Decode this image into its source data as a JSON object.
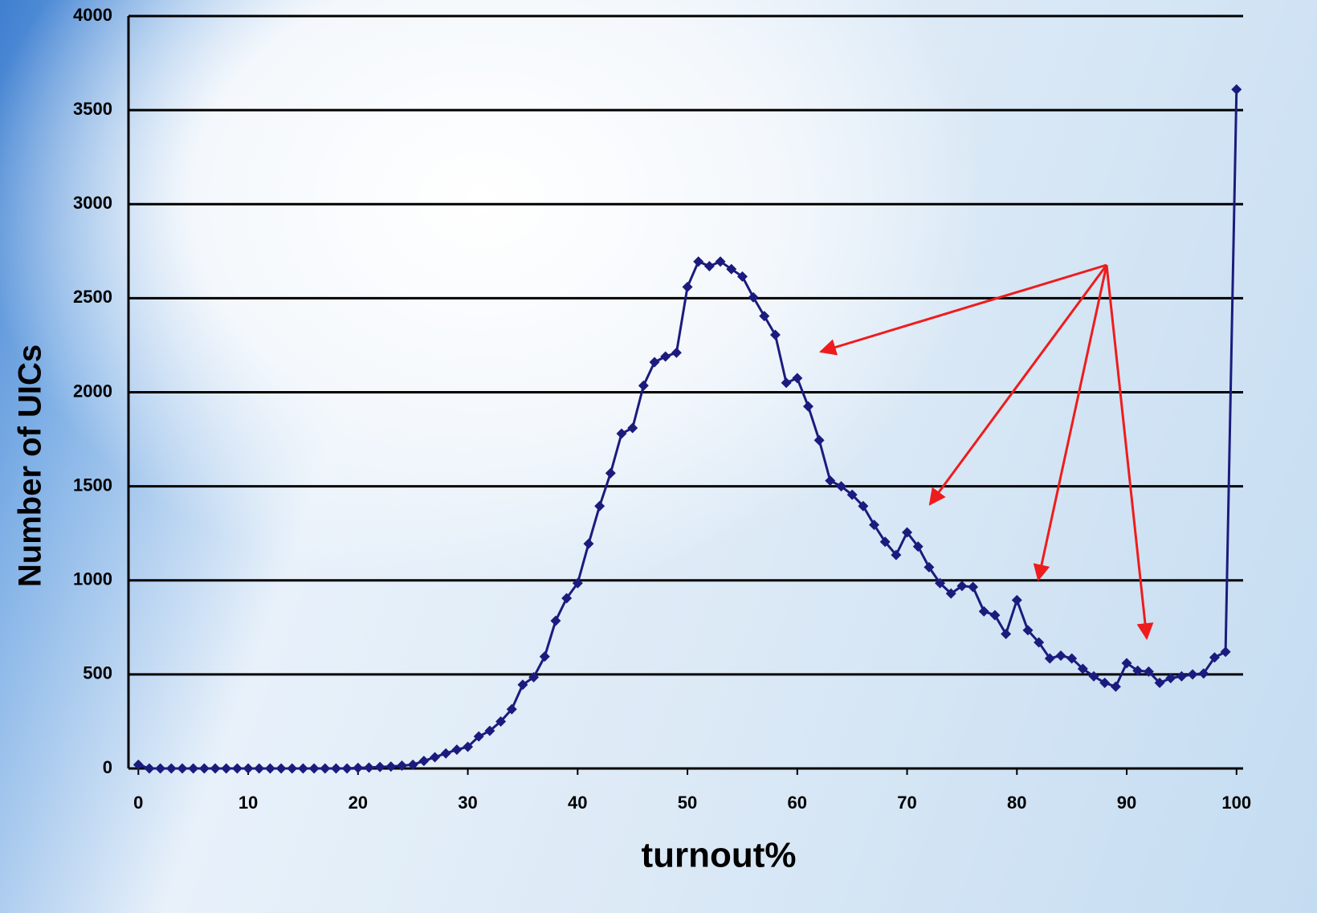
{
  "chart_data": {
    "type": "line",
    "x_label": "turnout%",
    "y_label": "Number of UICs",
    "x": [
      0,
      1,
      2,
      3,
      4,
      5,
      6,
      7,
      8,
      9,
      10,
      11,
      12,
      13,
      14,
      15,
      16,
      17,
      18,
      19,
      20,
      21,
      22,
      23,
      24,
      25,
      26,
      27,
      28,
      29,
      30,
      31,
      32,
      33,
      34,
      35,
      36,
      37,
      38,
      39,
      40,
      41,
      42,
      43,
      44,
      45,
      46,
      47,
      48,
      49,
      50,
      51,
      52,
      53,
      54,
      55,
      56,
      57,
      58,
      59,
      60,
      61,
      62,
      63,
      64,
      65,
      66,
      67,
      68,
      69,
      70,
      71,
      72,
      73,
      74,
      75,
      76,
      77,
      78,
      79,
      80,
      81,
      82,
      83,
      84,
      85,
      86,
      87,
      88,
      89,
      90,
      91,
      92,
      93,
      94,
      95,
      96,
      97,
      98,
      99,
      100
    ],
    "values": [
      20,
      0,
      0,
      0,
      0,
      0,
      0,
      0,
      0,
      0,
      0,
      0,
      0,
      0,
      0,
      0,
      0,
      0,
      0,
      0,
      3,
      5,
      8,
      10,
      15,
      20,
      40,
      60,
      80,
      100,
      115,
      170,
      200,
      250,
      315,
      445,
      485,
      595,
      785,
      905,
      985,
      1195,
      1395,
      1570,
      1780,
      1810,
      2035,
      2160,
      2190,
      2210,
      2560,
      2695,
      2670,
      2695,
      2655,
      2615,
      2505,
      2405,
      2305,
      2050,
      2075,
      1925,
      1745,
      1530,
      1500,
      1455,
      1395,
      1295,
      1205,
      1135,
      1255,
      1180,
      1070,
      985,
      930,
      970,
      965,
      835,
      815,
      715,
      895,
      735,
      670,
      585,
      600,
      585,
      530,
      490,
      455,
      435,
      560,
      520,
      515,
      455,
      480,
      490,
      500,
      505,
      590,
      620,
      3610
    ],
    "color": "#1b1b7e",
    "xlim": [
      -0.9,
      100.6
    ],
    "ylim": [
      0,
      4000
    ],
    "xticks": [
      0,
      10,
      20,
      30,
      40,
      50,
      60,
      70,
      80,
      90,
      100
    ],
    "yticks": [
      0,
      500,
      1000,
      1500,
      2000,
      2500,
      3000,
      3500,
      4000
    ],
    "grid": true
  }
}
